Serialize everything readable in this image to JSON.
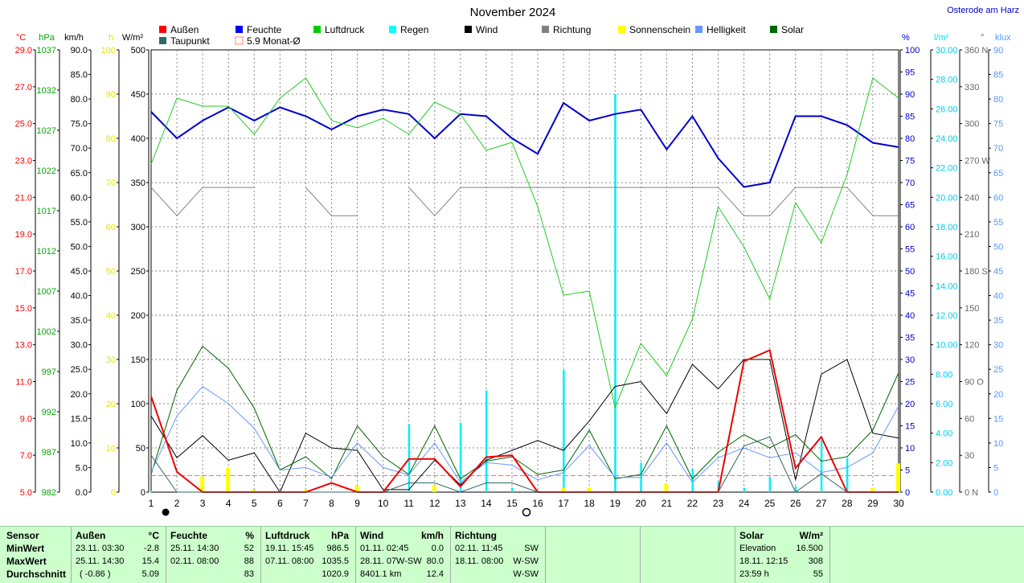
{
  "page": {
    "location": "Osterode am Harz"
  },
  "chart_data": {
    "type": "line",
    "title": "November 2024",
    "x": [
      1,
      2,
      3,
      4,
      5,
      6,
      7,
      8,
      9,
      10,
      11,
      12,
      13,
      14,
      15,
      16,
      17,
      18,
      19,
      20,
      21,
      22,
      23,
      24,
      25,
      26,
      27,
      28,
      29,
      30
    ],
    "axes": [
      {
        "key": "temp",
        "label": "°C",
        "color": "#ff0000",
        "min": 5,
        "max": 29,
        "ticks": [
          "29.0",
          "27.0",
          "25.0",
          "23.0",
          "21.0",
          "19.0",
          "17.0",
          "15.0",
          "13.0",
          "11.0",
          "9.0",
          "7.0",
          "5.0"
        ]
      },
      {
        "key": "hpa",
        "label": "hPa",
        "color": "#00aa00",
        "min": 982,
        "max": 1037,
        "ticks": [
          "1037",
          "1032",
          "1027",
          "1022",
          "1017",
          "1012",
          "1007",
          "1002",
          "997",
          "992",
          "987",
          "982"
        ]
      },
      {
        "key": "kmh",
        "label": "km/h",
        "color": "#000000",
        "min": 0,
        "max": 90,
        "ticks": [
          "90.0",
          "85.0",
          "80.0",
          "75.0",
          "70.0",
          "65.0",
          "60.0",
          "55.0",
          "50.0",
          "45.0",
          "40.0",
          "35.0",
          "30.0",
          "25.0",
          "20.0",
          "15.0",
          "10.0",
          "5.0",
          "0.0"
        ]
      },
      {
        "key": "h",
        "label": "h",
        "color": "#ffff00",
        "min": 0,
        "max": 100,
        "ticks": [
          "100",
          "90",
          "80",
          "70",
          "60",
          "50",
          "40",
          "30",
          "20",
          "10",
          "0"
        ]
      },
      {
        "key": "wm2",
        "label": "W/m²",
        "color": "#000000",
        "min": 0,
        "max": 500,
        "ticks": [
          "500",
          "450",
          "400",
          "350",
          "300",
          "250",
          "200",
          "150",
          "100",
          "50",
          "0"
        ]
      },
      {
        "key": "pct",
        "label": "%",
        "color": "#0000cc",
        "min": 0,
        "max": 100,
        "ticks": [
          "100",
          "95",
          "90",
          "85",
          "80",
          "75",
          "70",
          "65",
          "60",
          "55",
          "50",
          "45",
          "40",
          "35",
          "30",
          "25",
          "20",
          "15",
          "10",
          "5",
          "0"
        ]
      },
      {
        "key": "lm2",
        "label": "l/m²",
        "color": "#00e5ff",
        "min": 0,
        "max": 30,
        "ticks": [
          "30.00",
          "28.00",
          "26.00",
          "24.00",
          "22.00",
          "20.00",
          "18.00",
          "16.00",
          "14.00",
          "12.00",
          "10.00",
          "8.00",
          "6.00",
          "4.00",
          "2.00",
          "0.00"
        ]
      },
      {
        "key": "deg",
        "label": "°",
        "color": "#666666",
        "min": 0,
        "max": 360,
        "ticks": [
          "360 N",
          "330",
          "300",
          "270 W",
          "240",
          "210",
          "180 S",
          "150",
          "120",
          "90 O",
          "60",
          "30",
          "0 N"
        ]
      },
      {
        "key": "klux",
        "label": "klux",
        "color": "#5599ff",
        "min": 0,
        "max": 90,
        "ticks": [
          "90",
          "85",
          "80",
          "75",
          "70",
          "65",
          "60",
          "55",
          "50",
          "45",
          "40",
          "35",
          "30",
          "25",
          "20",
          "15",
          "10",
          "5",
          "0"
        ]
      }
    ],
    "legend": [
      {
        "name": "Außen",
        "color": "#ff0000"
      },
      {
        "name": "Feuchte",
        "color": "#0000ff"
      },
      {
        "name": "Luftdruck",
        "color": "#00cc00"
      },
      {
        "name": "Regen",
        "color": "#00ffff"
      },
      {
        "name": "Wind",
        "color": "#000000"
      },
      {
        "name": "Richtung",
        "color": "#808080"
      },
      {
        "name": "Sonnenschein",
        "color": "#ffff00"
      },
      {
        "name": "Helligkeit",
        "color": "#6699ff"
      },
      {
        "name": "Solar",
        "color": "#006600"
      },
      {
        "name": "Taupunkt",
        "color": "#336666"
      },
      {
        "name": "5.9 Monat-Ø",
        "color": "#ff8080",
        "outline": true
      }
    ],
    "monthly_mean_temp": 5.9,
    "series": [
      {
        "name": "Feuchte",
        "axis": "pct",
        "color": "#0000cc",
        "width": 2,
        "values": [
          86,
          80,
          84,
          87,
          84,
          87,
          85,
          82,
          85,
          86.5,
          85.5,
          80,
          85.5,
          85,
          80,
          76.5,
          88,
          84,
          85.5,
          86.5,
          77.5,
          85,
          75.5,
          69,
          70,
          85,
          85,
          83,
          79,
          78
        ]
      },
      {
        "name": "Luftdruck",
        "axis": "hpa",
        "color": "#22cc22",
        "width": 1,
        "values": [
          1022.8,
          1031.0,
          1030.0,
          1030.0,
          1026.5,
          1031.0,
          1033.5,
          1028.2,
          1027.3,
          1028.5,
          1026.5,
          1030.5,
          1029.0,
          1024.5,
          1025.5,
          1017.5,
          1006.5,
          1007.0,
          992.5,
          1000.5,
          996.5,
          1003.5,
          1017.5,
          1012.5,
          1006.0,
          1018.0,
          1013.0,
          1021.5,
          1033.5,
          1031.0
        ]
      },
      {
        "name": "Richtung",
        "axis": "deg",
        "color": "#808080",
        "width": 1,
        "values": [
          248,
          225,
          248,
          248,
          248,
          null,
          248,
          225,
          225,
          null,
          248,
          225,
          248,
          248,
          248,
          248,
          248,
          248,
          248,
          248,
          248,
          248,
          248,
          225,
          225,
          248,
          248,
          248,
          225,
          225
        ]
      },
      {
        "name": "Wind",
        "axis": "kmh",
        "color": "#000000",
        "width": 1,
        "values": [
          15.5,
          7.0,
          11.5,
          6.5,
          8.0,
          0,
          12.0,
          9.0,
          8.5,
          0.5,
          0.5,
          6.5,
          1.5,
          6.5,
          8.5,
          10.5,
          8.5,
          14.5,
          21.5,
          22.5,
          16.0,
          26.0,
          21.0,
          27.0,
          27.0,
          2.5,
          24.0,
          27.0,
          12.0,
          11.0
        ]
      },
      {
        "name": "Solar",
        "axis": "wm2",
        "color": "#006600",
        "width": 1,
        "values": [
          20,
          115,
          165,
          140,
          95,
          25,
          40,
          15,
          75,
          40,
          20,
          75,
          15,
          35,
          40,
          20,
          25,
          70,
          15,
          20,
          75,
          15,
          45,
          65,
          50,
          65,
          35,
          40,
          70,
          135
        ]
      },
      {
        "name": "Helligkeit",
        "axis": "klux",
        "color": "#6699ff",
        "width": 1,
        "values": [
          4,
          15.5,
          21.5,
          18,
          13,
          4.5,
          5,
          3,
          10,
          5,
          3.5,
          10,
          2,
          6,
          5.5,
          2.5,
          4,
          9.5,
          3,
          3,
          10,
          2,
          7,
          9,
          7,
          8,
          4,
          5,
          8,
          17.5
        ]
      },
      {
        "name": "Außen",
        "axis": "temp",
        "color": "#ee0000",
        "width": 2,
        "values": [
          10.2,
          6.1,
          4.6,
          3.3,
          2.0,
          5.0,
          4.6,
          5.5,
          4.0,
          5.0,
          6.8,
          6.8,
          5.3,
          6.9,
          7.0,
          5.0,
          2.5,
          3.8,
          3.0,
          2.5,
          3.5,
          3.0,
          -2.8,
          12.1,
          12.7,
          6.3,
          8.0,
          5.0,
          3.5,
          2.5
        ]
      },
      {
        "name": "Taupunkt",
        "axis": "temp",
        "color": "#336666",
        "width": 1,
        "values": [
          7.0,
          4.5,
          3.5,
          2.5,
          1.5,
          3.0,
          3.5,
          4.5,
          3.0,
          4.0,
          5.5,
          5.5,
          4.0,
          5.5,
          5.5,
          3.5,
          1.5,
          2.5,
          2.0,
          1.5,
          2.0,
          1.5,
          -4.0,
          7.5,
          8.0,
          4.5,
          6.0,
          3.5,
          2.0,
          1.0
        ]
      }
    ],
    "rain": {
      "name": "Regen",
      "axis": "lm2",
      "color": "#00eeff",
      "values": [
        0.1,
        0,
        0.3,
        0,
        0.2,
        0,
        0,
        0,
        0,
        0,
        4.6,
        0.4,
        4.7,
        6.9,
        0.3,
        0.1,
        8.3,
        0.2,
        27.0,
        2.0,
        0,
        1.6,
        0.7,
        0.3,
        1.0,
        0.4,
        3.5,
        2.3,
        0,
        0
      ]
    },
    "sunshine": {
      "name": "Sonnenschein",
      "axis": "h",
      "color": "#ffff00",
      "values": [
        0,
        0,
        3.5,
        5.5,
        0.5,
        0,
        0.5,
        0,
        1.5,
        0,
        0,
        1.5,
        0,
        0,
        0,
        0,
        1,
        1,
        0,
        0,
        2,
        0,
        0,
        0,
        0,
        0,
        0,
        0,
        1,
        6.5
      ]
    },
    "moon_markers": [
      {
        "day": 2,
        "phase": "new",
        "symbol": "●"
      },
      {
        "day": 16,
        "phase": "full",
        "symbol": "○"
      }
    ]
  },
  "stats": {
    "row_labels": {
      "header": "Sensor",
      "min": "MinWert",
      "max": "MaxWert",
      "avg": "Durchschnitt"
    },
    "aussen": {
      "title": "Außen",
      "unit": "°C",
      "min_time": "23.11.  03:30",
      "min_val": "-2.8",
      "max_time": "25.11.  14:30",
      "max_val": "15.4",
      "avg_note": "( -0.86 )",
      "avg_val": "5.09"
    },
    "feuchte": {
      "title": "Feuchte",
      "unit": "%",
      "min_time": "25.11.  14:30",
      "min_val": "52",
      "max_time": "02.11.  08:00",
      "max_val": "88",
      "avg_val": "83"
    },
    "luftdruck": {
      "title": "Luftdruck",
      "unit": "hPa",
      "min_time": "19.11.  15:45",
      "min_val": "986.5",
      "max_time": "07.11.  08:00",
      "max_val": "1035.5",
      "avg_val": "1020.9"
    },
    "wind": {
      "title": "Wind",
      "unit": "km/h",
      "min_time": "01.11.  02:45",
      "min_val": "0.0",
      "max_time": "28.11.  07W-SW",
      "max_val": "80.0",
      "avg_time": "8401.1 km",
      "avg_val": "12.4"
    },
    "richtung": {
      "title": "Richtung",
      "min_time": "02.11.  11:45",
      "min_val": "SW",
      "max_time": "18.11.  08:00",
      "max_val": "W-SW",
      "avg_val": "W-SW"
    },
    "solar": {
      "title": "Solar",
      "unit": "W/m²",
      "row1_label": "Elevation",
      "row1_val": "16.500",
      "row2_label": "18.11.  12:15",
      "row2_val": "308",
      "row3_label": "23:59 h",
      "row3_val": "55"
    }
  }
}
